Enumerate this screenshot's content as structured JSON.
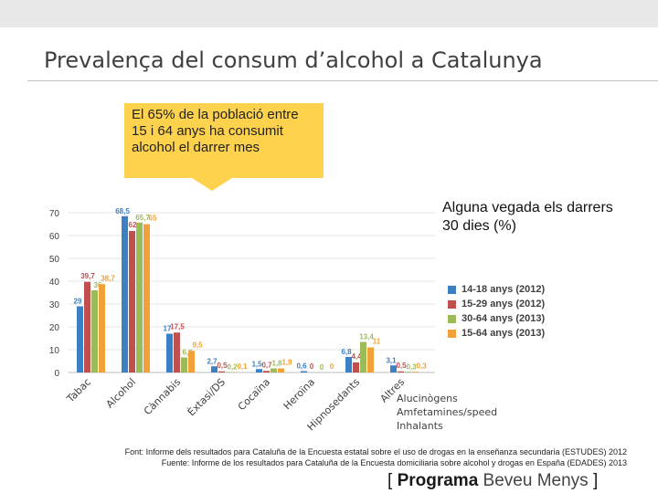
{
  "slide": {
    "title": "Prevalença del consum d’alcohol a Catalunya",
    "callout": "El 65% de la població entre 15 i 64 anys ha consumit alcohol el darrer mes",
    "side_label": "Alguna vegada els darrers 30 dies (%)",
    "footnote_1": "Font: Informe dels resultados para Cataluña de la Encuesta estatal sobre el uso de drogas en la enseñanza secundaria (ESTUDES) 2012",
    "footnote_2": "Fuente: Informe de los resultados para Cataluña de la Encuesta domiciliaria sobre alcohol y drogas en España (EDADES) 2013",
    "brand": {
      "open": "[",
      "word1": "Programa",
      "word2": "Beveu Menys",
      "close": "]"
    },
    "extra_categories": [
      "Alucinògens",
      "Amfetamines/speed",
      "Inhalants"
    ]
  },
  "chart_data": {
    "type": "bar",
    "ylim": [
      0,
      70
    ],
    "yticks": [
      0,
      10,
      20,
      30,
      40,
      50,
      60,
      70
    ],
    "categories": [
      "Tabac",
      "Alcohol",
      "Cànnabis",
      "Èxtasi/DS",
      "Cocaïna",
      "Heroïna",
      "Hipnosedants",
      "Altres"
    ],
    "series": [
      {
        "name": "14-18 anys (2012)",
        "color": "#3c7fc2",
        "values": [
          29,
          68.5,
          17,
          2.7,
          1.5,
          0.6,
          6.8,
          3.1
        ],
        "labels": [
          "29",
          "68,5",
          "17",
          "2,7",
          "1,5",
          "0,6",
          "6,8",
          "3,1"
        ]
      },
      {
        "name": "15-29 anys (2012)",
        "color": "#c0504d",
        "values": [
          39.7,
          62,
          17.5,
          0.5,
          0.7,
          0,
          4.4,
          0.5
        ],
        "labels": [
          "39,7",
          "62",
          "17,5",
          "0,5",
          "0,7",
          "0",
          "4,4",
          "0,5"
        ]
      },
      {
        "name": "30-64 anys (2013)",
        "color": "#9bbb59",
        "values": [
          36,
          65.7,
          6.6,
          0.2,
          1.8,
          0,
          13.4,
          0.3
        ],
        "labels": [
          "36",
          "65,7",
          "6,6",
          "0,2",
          "1,8",
          "0",
          "13,4",
          "0,3"
        ]
      },
      {
        "name": "15-64 anys (2013)",
        "color": "#f2a13a",
        "values": [
          38.7,
          65,
          9.5,
          0.1,
          1.8,
          0,
          11,
          0.3
        ],
        "labels": [
          "38,7",
          "65",
          "9,5",
          "0,1",
          "1,8",
          "0",
          "11",
          "0,3"
        ]
      }
    ]
  }
}
